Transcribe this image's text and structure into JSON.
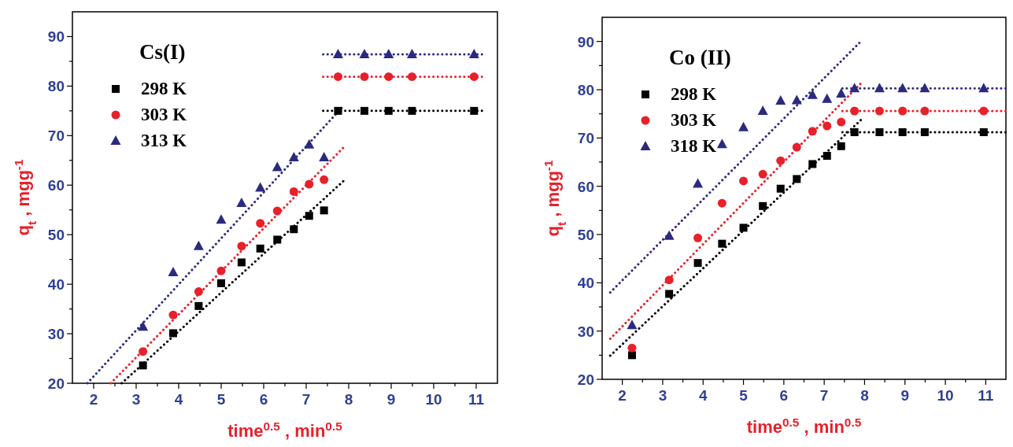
{
  "chart_data": [
    {
      "type": "scatter",
      "legend_title": "Cs(I)",
      "xlabel": "time$^{0.5}$ , min$^{0.5}$",
      "ylabel": "q$_{t}$ , mgg$^{-1}$",
      "xlim": [
        1.5,
        11.5
      ],
      "ylim": [
        20,
        95
      ],
      "xticks": [
        2,
        {
          "value": 2.5,
          "label": null
        },
        3,
        {
          "value": 3.5,
          "label": null
        },
        4,
        {
          "value": 4.5,
          "label": null
        },
        5,
        {
          "value": 5.5,
          "label": null
        },
        6,
        {
          "value": 6.5,
          "label": null
        },
        7,
        {
          "value": 7.5,
          "label": null
        },
        8,
        {
          "value": 8.5,
          "label": null
        },
        9,
        {
          "value": 9.5,
          "label": null
        },
        10,
        {
          "value": 10.5,
          "label": null
        },
        11
      ],
      "yticks": [
        20,
        {
          "value": 25,
          "label": null
        },
        30,
        {
          "value": 35,
          "label": null
        },
        40,
        {
          "value": 45,
          "label": null
        },
        50,
        {
          "value": 55,
          "label": null
        },
        60,
        {
          "value": 65,
          "label": null
        },
        70,
        {
          "value": 75,
          "label": null
        },
        80,
        {
          "value": 85,
          "label": null
        },
        90
      ],
      "legend": "top left",
      "grid": false,
      "series": [
        {
          "name": "298 K",
          "marker": "square",
          "color": "#000000",
          "x": [
            3.16,
            3.87,
            4.47,
            5,
            5.48,
            5.92,
            6.32,
            6.71,
            7.07,
            7.42,
            7.75,
            8.37,
            8.94,
            9.49,
            10.95
          ],
          "values": [
            23.6,
            30.1,
            35.6,
            40.2,
            44.4,
            47.2,
            49.0,
            51.1,
            53.8,
            54.9,
            75.0,
            75.0,
            75.0,
            75.0,
            75.0
          ]
        },
        {
          "name": "303 K",
          "marker": "circle",
          "color": "#e8202a",
          "x": [
            3.16,
            3.87,
            4.47,
            5,
            5.48,
            5.92,
            6.32,
            6.71,
            7.07,
            7.42,
            7.75,
            8.37,
            8.94,
            9.49,
            10.95
          ],
          "values": [
            26.4,
            33.8,
            38.5,
            42.7,
            47.7,
            52.3,
            54.8,
            58.7,
            60.2,
            61.1,
            81.9,
            81.9,
            81.9,
            81.9,
            81.9
          ]
        },
        {
          "name": "313 K",
          "marker": "triangle",
          "color": "#2b2a7f",
          "x": [
            3.16,
            3.87,
            4.47,
            5,
            5.48,
            5.92,
            6.32,
            6.71,
            7.07,
            7.42,
            7.75,
            8.37,
            8.94,
            9.49,
            10.95
          ],
          "values": [
            31.4,
            42.4,
            47.7,
            53.0,
            56.4,
            59.5,
            63.6,
            65.6,
            68.2,
            65.6,
            86.4,
            86.4,
            86.4,
            86.4,
            86.4
          ]
        },
        {
          "type": "line",
          "marker": "none",
          "line_style": "dotted",
          "color": "#000000",
          "x": [
            2.66,
            7.9
          ],
          "values": [
            20,
            61.0
          ]
        },
        {
          "type": "line",
          "marker": "none",
          "line_style": "dotted",
          "color": "#e8202a",
          "x": [
            2.4,
            7.9
          ],
          "values": [
            20,
            67.8
          ]
        },
        {
          "type": "line",
          "marker": "none",
          "line_style": "dotted",
          "color": "#2b2a7f",
          "x": [
            1.85,
            7.9
          ],
          "values": [
            20,
            76.2
          ]
        },
        {
          "type": "line",
          "marker": "none",
          "line_style": "dotted",
          "color": "#000000",
          "x": [
            7.4,
            11.2
          ],
          "values": [
            75.0,
            75.0
          ]
        },
        {
          "type": "line",
          "marker": "none",
          "line_style": "dotted",
          "color": "#e8202a",
          "x": [
            7.4,
            11.2
          ],
          "values": [
            81.9,
            81.9
          ]
        },
        {
          "type": "line",
          "marker": "none",
          "line_style": "dotted",
          "color": "#2b2a7f",
          "x": [
            7.4,
            11.2
          ],
          "values": [
            86.4,
            86.4
          ]
        }
      ]
    },
    {
      "type": "scatter",
      "legend_title": "Co (II)",
      "xlabel": "time$^{0.5}$ , min$^{0.5}$",
      "ylabel": "q$_{t}$ , mgg$^{-1}$",
      "xlim": [
        1.5,
        11.5
      ],
      "ylim": [
        20,
        95
      ],
      "xticks": [
        2,
        {
          "value": 2.5,
          "label": null
        },
        3,
        {
          "value": 3.5,
          "label": null
        },
        4,
        {
          "value": 4.5,
          "label": null
        },
        5,
        {
          "value": 5.5,
          "label": null
        },
        6,
        {
          "value": 6.5,
          "label": null
        },
        7,
        {
          "value": 7.5,
          "label": null
        },
        8,
        {
          "value": 8.5,
          "label": null
        },
        9,
        {
          "value": 9.5,
          "label": null
        },
        10,
        {
          "value": 10.5,
          "label": null
        },
        11
      ],
      "yticks": [
        20,
        {
          "value": 25,
          "label": null
        },
        30,
        {
          "value": 35,
          "label": null
        },
        40,
        {
          "value": 45,
          "label": null
        },
        50,
        {
          "value": 55,
          "label": null
        },
        60,
        {
          "value": 65,
          "label": null
        },
        70,
        {
          "value": 75,
          "label": null
        },
        80,
        {
          "value": 85,
          "label": null
        },
        90
      ],
      "legend": "top left",
      "grid": false,
      "series": [
        {
          "name": "298 K",
          "marker": "square",
          "color": "#000000",
          "x": [
            2.24,
            3.16,
            3.87,
            4.47,
            5,
            5.48,
            5.92,
            6.32,
            6.71,
            7.07,
            7.42,
            7.75,
            8.37,
            8.94,
            9.49,
            10.95
          ],
          "values": [
            25.0,
            37.7,
            44.1,
            48.1,
            51.4,
            55.9,
            59.5,
            61.5,
            64.6,
            66.3,
            68.3,
            71.2,
            71.2,
            71.2,
            71.2,
            71.2
          ]
        },
        {
          "name": "303 K",
          "marker": "circle",
          "color": "#e8202a",
          "x": [
            2.24,
            3.16,
            3.87,
            4.47,
            5,
            5.48,
            5.92,
            6.32,
            6.71,
            7.07,
            7.42,
            7.75,
            8.37,
            8.94,
            9.49,
            10.95
          ],
          "values": [
            26.5,
            40.6,
            49.3,
            56.5,
            61.1,
            62.5,
            65.3,
            68.1,
            71.4,
            72.5,
            73.3,
            75.6,
            75.6,
            75.6,
            75.6,
            75.6
          ]
        },
        {
          "name": "318 K",
          "marker": "triangle",
          "color": "#2b2a7f",
          "x": [
            2.24,
            3.16,
            3.87,
            4.47,
            5,
            5.48,
            5.92,
            6.32,
            6.71,
            7.07,
            7.42,
            7.75,
            8.37,
            8.94,
            9.49,
            10.95
          ],
          "values": [
            31.2,
            49.7,
            60.5,
            68.7,
            72.2,
            75.6,
            77.7,
            77.8,
            78.9,
            78.1,
            79.2,
            80.3,
            80.3,
            80.3,
            80.3,
            80.3
          ]
        },
        {
          "type": "line",
          "marker": "none",
          "line_style": "dotted",
          "color": "#000000",
          "x": [
            1.7,
            7.93
          ],
          "values": [
            24.9,
            73.9
          ]
        },
        {
          "type": "line",
          "marker": "none",
          "line_style": "dotted",
          "color": "#e8202a",
          "x": [
            1.7,
            7.93
          ],
          "values": [
            28.4,
            81.5
          ]
        },
        {
          "type": "line",
          "marker": "none",
          "line_style": "dotted",
          "color": "#2b2a7f",
          "x": [
            1.7,
            7.93
          ],
          "values": [
            38.0,
            90.2
          ]
        },
        {
          "type": "line",
          "marker": "none",
          "line_style": "dotted",
          "color": "#000000",
          "x": [
            7.45,
            11.5
          ],
          "values": [
            71.2,
            71.2
          ]
        },
        {
          "type": "line",
          "marker": "none",
          "line_style": "dotted",
          "color": "#e8202a",
          "x": [
            7.45,
            11.5
          ],
          "values": [
            75.6,
            75.6
          ]
        },
        {
          "type": "line",
          "marker": "none",
          "line_style": "dotted",
          "color": "#2b2a7f",
          "x": [
            7.45,
            11.5
          ],
          "values": [
            80.3,
            80.3
          ]
        }
      ]
    }
  ]
}
